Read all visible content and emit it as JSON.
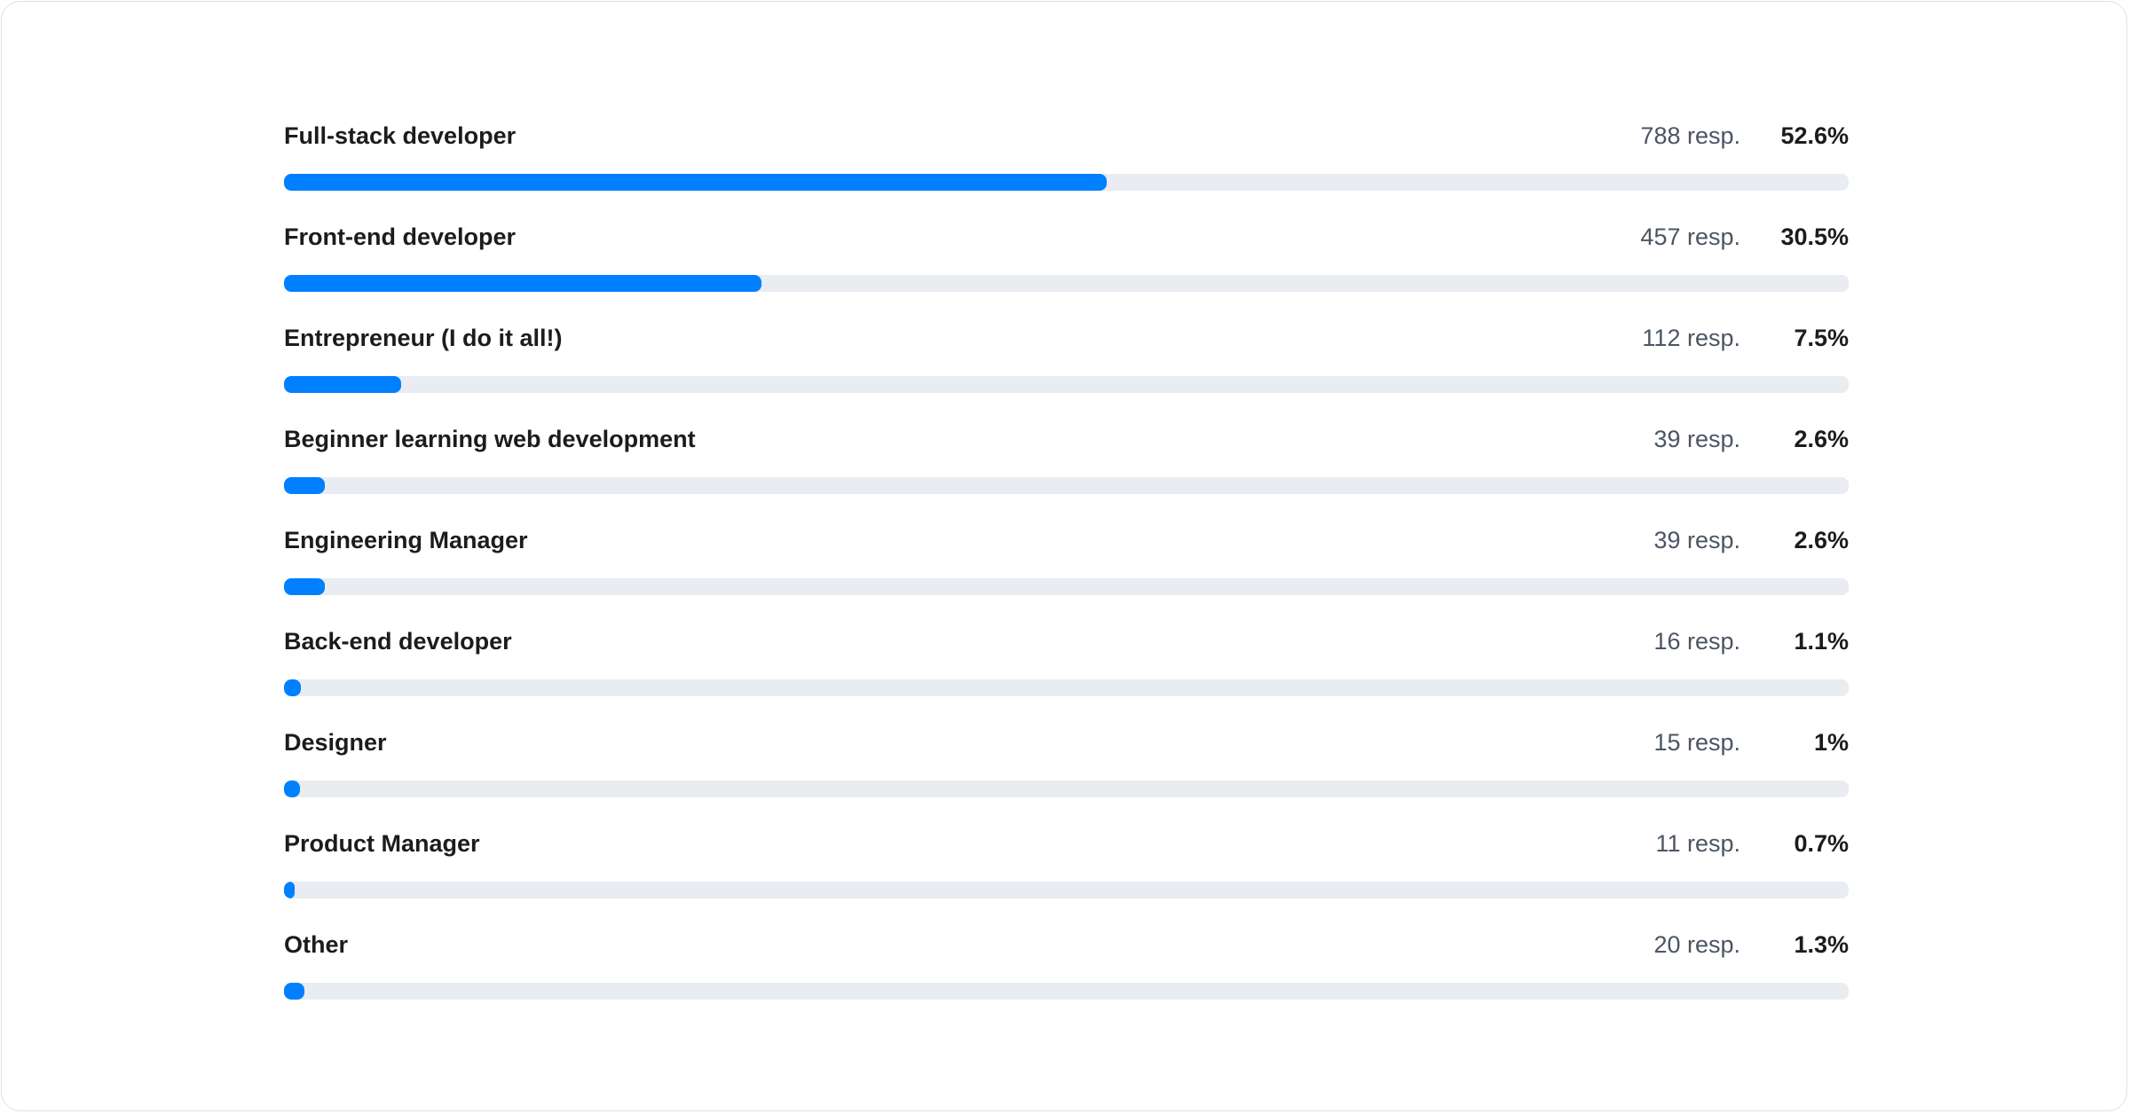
{
  "colors": {
    "bar_fill": "#0080FF",
    "track": "#E9ECF1"
  },
  "chart_data": {
    "type": "bar",
    "orientation": "horizontal",
    "categories": [
      "Full-stack developer",
      "Front-end developer",
      "Entrepreneur (I do it all!)",
      "Beginner learning web development",
      "Engineering Manager",
      "Back-end developer",
      "Designer",
      "Product Manager",
      "Other"
    ],
    "responses": [
      788,
      457,
      112,
      39,
      39,
      16,
      15,
      11,
      20
    ],
    "values": [
      52.6,
      30.5,
      7.5,
      2.6,
      2.6,
      1.1,
      1,
      0.7,
      1.3
    ],
    "response_labels": [
      "788 resp.",
      "457 resp.",
      "112 resp.",
      "39 resp.",
      "39 resp.",
      "16 resp.",
      "15 resp.",
      "11 resp.",
      "20 resp."
    ],
    "percent_labels": [
      "52.6%",
      "30.5%",
      "7.5%",
      "2.6%",
      "2.6%",
      "1.1%",
      "1%",
      "0.7%",
      "1.3%"
    ],
    "xlim": [
      0,
      100
    ],
    "grid": false
  }
}
